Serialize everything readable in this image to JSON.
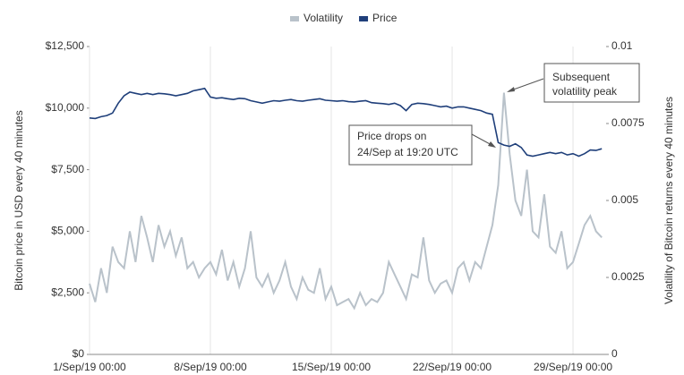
{
  "chart_data": {
    "type": "line",
    "legend": "top",
    "grid": "x",
    "y_label": "Bitcoin price in USD every 40 minutes",
    "y2_label": "Volatility of Bitcoin returns every 40 minutes",
    "xlim": [
      "1/Sep/19 00:00",
      "30/Sep/19 22:00"
    ],
    "xticks": [
      "1/Sep/19 00:00",
      "8/Sep/19 00:00",
      "15/Sep/19 00:00",
      "22/Sep/19 00:00",
      "29/Sep/19 00:00"
    ],
    "ylim": [
      0,
      12500
    ],
    "yticks": [
      {
        "value": 0,
        "label": "$0"
      },
      {
        "value": 2500,
        "label": "$2,500"
      },
      {
        "value": 5000,
        "label": "$5,000"
      },
      {
        "value": 7500,
        "label": "$7,500"
      },
      {
        "value": 10000,
        "label": "$10,000"
      },
      {
        "value": 12500,
        "label": "$12,500"
      }
    ],
    "y2lim": [
      0,
      0.01
    ],
    "y2ticks": [
      0,
      0.0025,
      0.005,
      0.0075,
      0.01
    ],
    "x": [
      "1/Sep/19 00:00",
      "1/Sep/19 08:00",
      "1/Sep/19 16:00",
      "2/Sep/19 00:00",
      "2/Sep/19 08:00",
      "2/Sep/19 16:00",
      "3/Sep/19 00:00",
      "3/Sep/19 08:00",
      "3/Sep/19 16:00",
      "4/Sep/19 00:00",
      "4/Sep/19 08:00",
      "4/Sep/19 16:00",
      "5/Sep/19 00:00",
      "5/Sep/19 08:00",
      "5/Sep/19 16:00",
      "6/Sep/19 00:00",
      "6/Sep/19 08:00",
      "6/Sep/19 16:00",
      "7/Sep/19 00:00",
      "7/Sep/19 08:00",
      "7/Sep/19 16:00",
      "8/Sep/19 00:00",
      "8/Sep/19 08:00",
      "8/Sep/19 16:00",
      "9/Sep/19 00:00",
      "9/Sep/19 08:00",
      "9/Sep/19 16:00",
      "10/Sep/19 00:00",
      "10/Sep/19 08:00",
      "10/Sep/19 16:00",
      "11/Sep/19 00:00",
      "11/Sep/19 08:00",
      "11/Sep/19 16:00",
      "12/Sep/19 00:00",
      "12/Sep/19 08:00",
      "12/Sep/19 16:00",
      "13/Sep/19 00:00",
      "13/Sep/19 08:00",
      "13/Sep/19 16:00",
      "14/Sep/19 00:00",
      "14/Sep/19 08:00",
      "14/Sep/19 16:00",
      "15/Sep/19 00:00",
      "15/Sep/19 08:00",
      "15/Sep/19 16:00",
      "16/Sep/19 00:00",
      "16/Sep/19 08:00",
      "16/Sep/19 16:00",
      "17/Sep/19 00:00",
      "17/Sep/19 08:00",
      "17/Sep/19 16:00",
      "18/Sep/19 00:00",
      "18/Sep/19 08:00",
      "18/Sep/19 16:00",
      "19/Sep/19 00:00",
      "19/Sep/19 08:00",
      "19/Sep/19 16:00",
      "20/Sep/19 00:00",
      "20/Sep/19 08:00",
      "20/Sep/19 16:00",
      "21/Sep/19 00:00",
      "21/Sep/19 08:00",
      "21/Sep/19 16:00",
      "22/Sep/19 00:00",
      "22/Sep/19 08:00",
      "22/Sep/19 16:00",
      "23/Sep/19 00:00",
      "23/Sep/19 08:00",
      "23/Sep/19 16:00",
      "24/Sep/19 00:00",
      "24/Sep/19 08:00",
      "24/Sep/19 16:00",
      "25/Sep/19 00:00",
      "25/Sep/19 08:00",
      "25/Sep/19 16:00",
      "26/Sep/19 00:00",
      "26/Sep/19 08:00",
      "26/Sep/19 16:00",
      "27/Sep/19 00:00",
      "27/Sep/19 08:00",
      "27/Sep/19 16:00",
      "28/Sep/19 00:00",
      "28/Sep/19 08:00",
      "28/Sep/19 16:00",
      "29/Sep/19 00:00",
      "29/Sep/19 08:00",
      "29/Sep/19 16:00",
      "30/Sep/19 00:00",
      "30/Sep/19 08:00",
      "30/Sep/19 16:00"
    ],
    "series": [
      {
        "name": "Volatility",
        "color": "#b9c2ca",
        "axis": "y2",
        "values": [
          0.0023,
          0.0017,
          0.0028,
          0.002,
          0.0035,
          0.003,
          0.0028,
          0.004,
          0.003,
          0.0045,
          0.0038,
          0.003,
          0.0042,
          0.0035,
          0.004,
          0.0032,
          0.0038,
          0.0028,
          0.003,
          0.0025,
          0.0028,
          0.003,
          0.0026,
          0.0034,
          0.0024,
          0.003,
          0.0022,
          0.0028,
          0.004,
          0.0025,
          0.0022,
          0.0026,
          0.002,
          0.0024,
          0.003,
          0.0022,
          0.0018,
          0.0025,
          0.0021,
          0.002,
          0.0028,
          0.0018,
          0.0022,
          0.0016,
          0.0017,
          0.0018,
          0.0015,
          0.002,
          0.0016,
          0.0018,
          0.0017,
          0.002,
          0.003,
          0.0026,
          0.0022,
          0.0018,
          0.0026,
          0.0025,
          0.0038,
          0.0024,
          0.002,
          0.0023,
          0.0024,
          0.002,
          0.0028,
          0.003,
          0.0024,
          0.003,
          0.0028,
          0.0035,
          0.0042,
          0.0055,
          0.0085,
          0.0065,
          0.005,
          0.0045,
          0.006,
          0.004,
          0.0038,
          0.0052,
          0.0035,
          0.0033,
          0.004,
          0.0028,
          0.003,
          0.0036,
          0.0042,
          0.0045,
          0.004,
          0.0038
        ]
      },
      {
        "name": "Price",
        "color": "#1f3f7a",
        "values": [
          9600,
          9580,
          9650,
          9700,
          9800,
          10200,
          10500,
          10650,
          10600,
          10550,
          10600,
          10550,
          10600,
          10580,
          10550,
          10500,
          10550,
          10600,
          10700,
          10750,
          10800,
          10450,
          10400,
          10420,
          10380,
          10350,
          10400,
          10380,
          10300,
          10250,
          10200,
          10250,
          10300,
          10280,
          10320,
          10350,
          10300,
          10280,
          10320,
          10350,
          10380,
          10320,
          10300,
          10280,
          10300,
          10260,
          10250,
          10280,
          10300,
          10220,
          10200,
          10180,
          10150,
          10200,
          10100,
          9900,
          10150,
          10200,
          10180,
          10150,
          10100,
          10050,
          10080,
          10000,
          10050,
          10050,
          10000,
          9950,
          9900,
          9800,
          9750,
          8600,
          8500,
          8450,
          8550,
          8400,
          8100,
          8050,
          8100,
          8150,
          8200,
          8150,
          8200,
          8100,
          8150,
          8050,
          8150,
          8300,
          8280,
          8350
        ]
      }
    ],
    "annotations": [
      {
        "lines": [
          "Subsequent",
          "volatility peak"
        ]
      },
      {
        "lines": [
          "Price drops on",
          "24/Sep at 19:20 UTC"
        ]
      }
    ]
  }
}
